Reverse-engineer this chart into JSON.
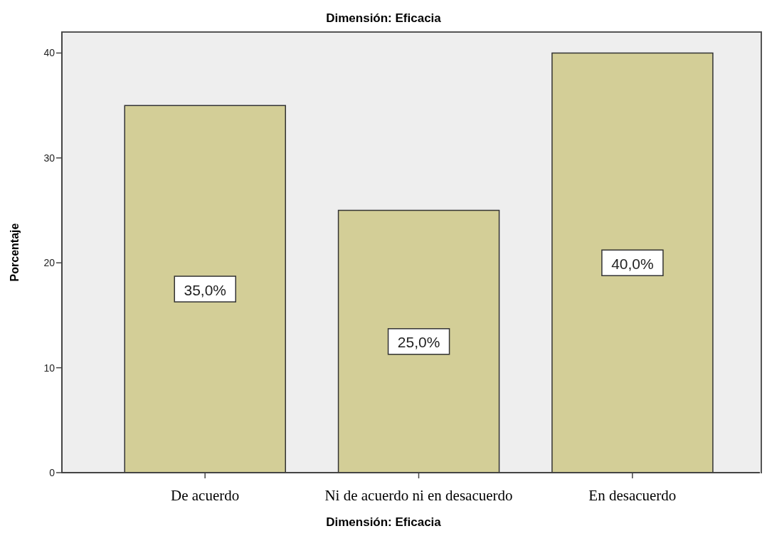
{
  "chart_data": {
    "type": "bar",
    "title": "Dimensión: Eficacia",
    "xlabel": "Dimensión: Eficacia",
    "ylabel": "Porcentaje",
    "categories": [
      "De acuerdo",
      "Ni de acuerdo ni en desacuerdo",
      "En desacuerdo"
    ],
    "values": [
      35,
      25,
      40
    ],
    "value_labels": [
      "35,0%",
      "25,0%",
      "40,0%"
    ],
    "color": "#d3ce97",
    "ylim": [
      0,
      42
    ],
    "yticks": [
      0,
      10,
      20,
      30,
      40
    ]
  }
}
